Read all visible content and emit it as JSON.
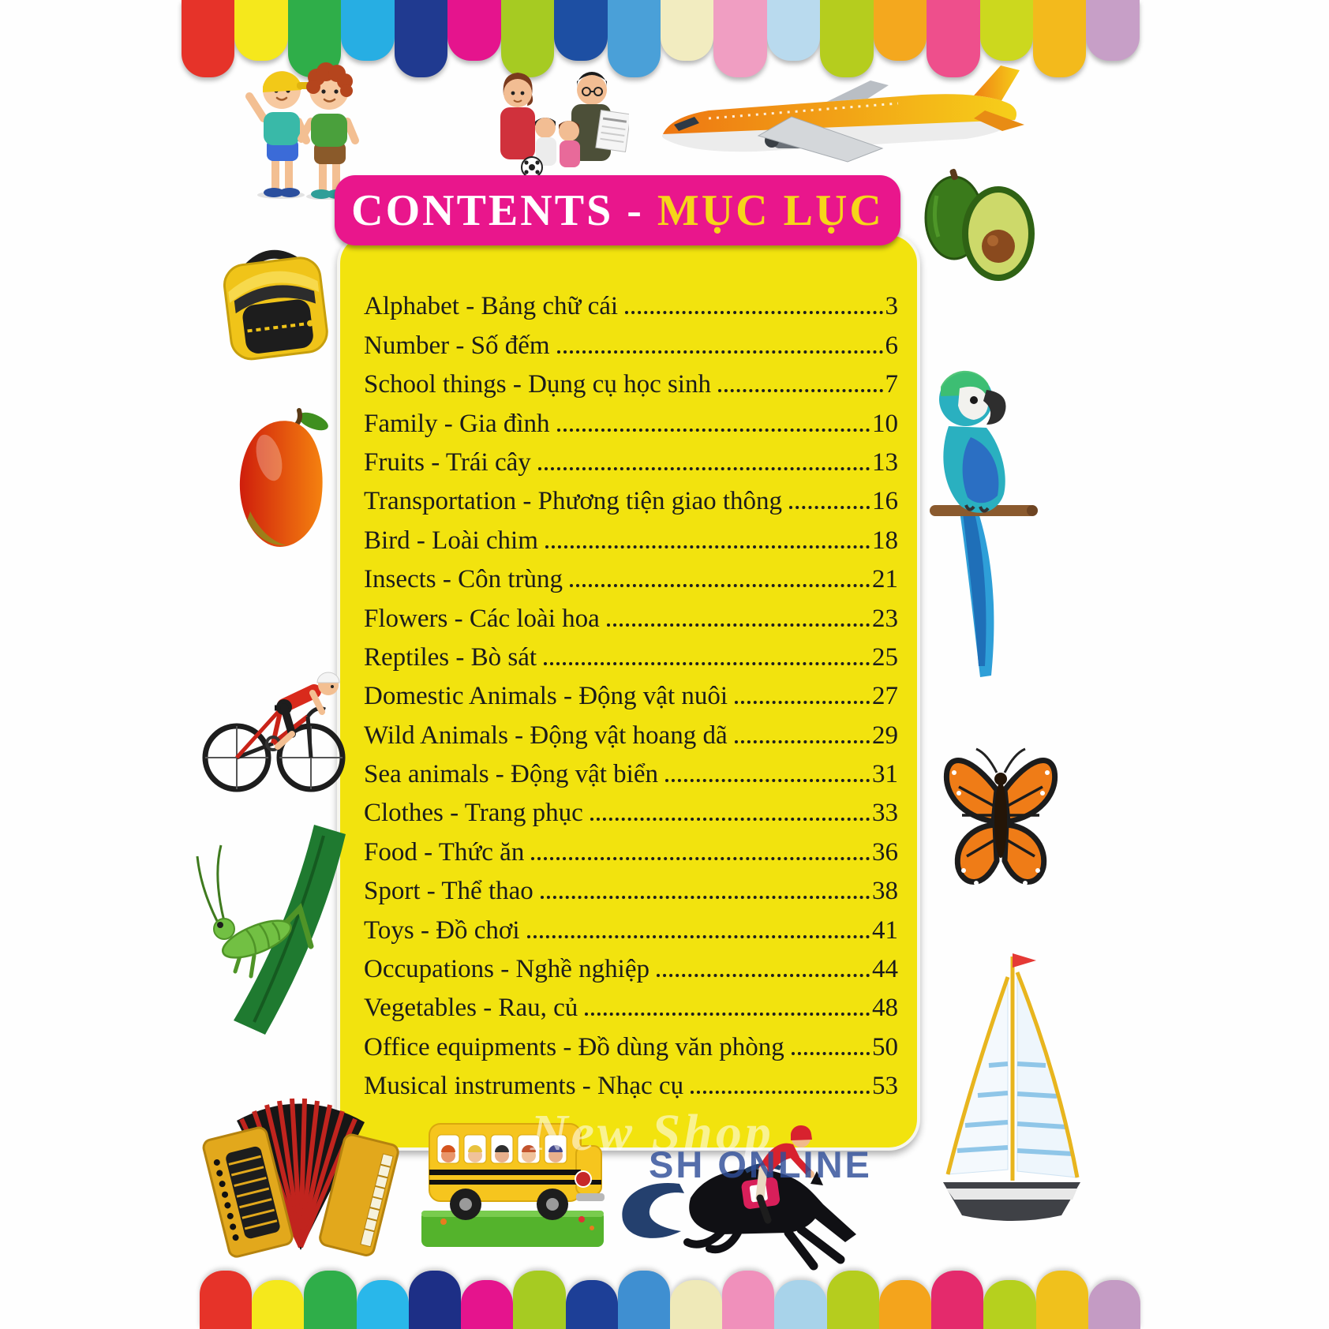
{
  "banner": {
    "title_en": "CONTENTS",
    "separator": " - ",
    "title_vi": "MỤC LỤC",
    "bg": "#e9168c",
    "title_en_color": "#ffffff",
    "title_vi_color": "#f6d519"
  },
  "panel": {
    "bg": "#f2e30e"
  },
  "toc": {
    "rows": [
      {
        "label": "Alphabet - Bảng chữ cái",
        "page": "3"
      },
      {
        "label": "Number - Số đếm",
        "page": "6"
      },
      {
        "label": "School things - Dụng cụ học sinh",
        "page": "7"
      },
      {
        "label": "Family - Gia đình",
        "page": "10"
      },
      {
        "label": "Fruits - Trái cây",
        "page": "13"
      },
      {
        "label": "Transportation - Phương tiện giao thông",
        "page": "16"
      },
      {
        "label": "Bird - Loài chim",
        "page": "18"
      },
      {
        "label": "Insects - Côn trùng",
        "page": "21"
      },
      {
        "label": "Flowers - Các loài hoa",
        "page": "23"
      },
      {
        "label": "Reptiles - Bò sát",
        "page": "25"
      },
      {
        "label": "Domestic Animals - Động vật nuôi",
        "page": "27"
      },
      {
        "label": "Wild Animals - Động vật hoang dã",
        "page": "29"
      },
      {
        "label": "Sea animals - Động vật biển",
        "page": "31"
      },
      {
        "label": "Clothes - Trang phục",
        "page": "33"
      },
      {
        "label": "Food - Thức ăn",
        "page": "36"
      },
      {
        "label": "Sport - Thể thao",
        "page": "38"
      },
      {
        "label": "Toys - Đồ chơi",
        "page": "41"
      },
      {
        "label": "Occupations - Nghề nghiệp",
        "page": "44"
      },
      {
        "label": "Vegetables - Rau, củ",
        "page": "48"
      },
      {
        "label": "Office equipments - Đồ dùng văn phòng",
        "page": "50"
      },
      {
        "label": "Musical instruments - Nhạc cụ",
        "page": "53"
      }
    ]
  },
  "border": {
    "top_colors": [
      "#e63329",
      "#f5e81c",
      "#2fae49",
      "#27aee3",
      "#203a90",
      "#e5148d",
      "#a6cb22",
      "#1d4fa3",
      "#4aa0d8",
      "#f2ecc0",
      "#f09ec2",
      "#b9daee",
      "#b5cd1e",
      "#f4a81e",
      "#ee4f8c",
      "#ccd81e",
      "#f3ba1c",
      "#c79fc7"
    ],
    "bottom_colors": [
      "#e63329",
      "#f5e81c",
      "#2fae49",
      "#29b7ea",
      "#1d2f86",
      "#e5148d",
      "#a6cb22",
      "#1d3f97",
      "#3f8fd1",
      "#efe9b8",
      "#f090bb",
      "#a8d3ea",
      "#b5cd1e",
      "#f4a41c",
      "#e42a6c",
      "#b6d01e",
      "#f0c11c",
      "#c49bc4"
    ]
  },
  "watermarks": {
    "shop": "New Shop",
    "online": "SH ONLINE"
  },
  "illustrations": [
    "two-boys",
    "family",
    "airplane",
    "avocado",
    "backpack",
    "mango",
    "parrot",
    "cyclist",
    "butterfly",
    "grasshopper",
    "sailboat",
    "accordion",
    "school-bus",
    "horse-jockey"
  ]
}
